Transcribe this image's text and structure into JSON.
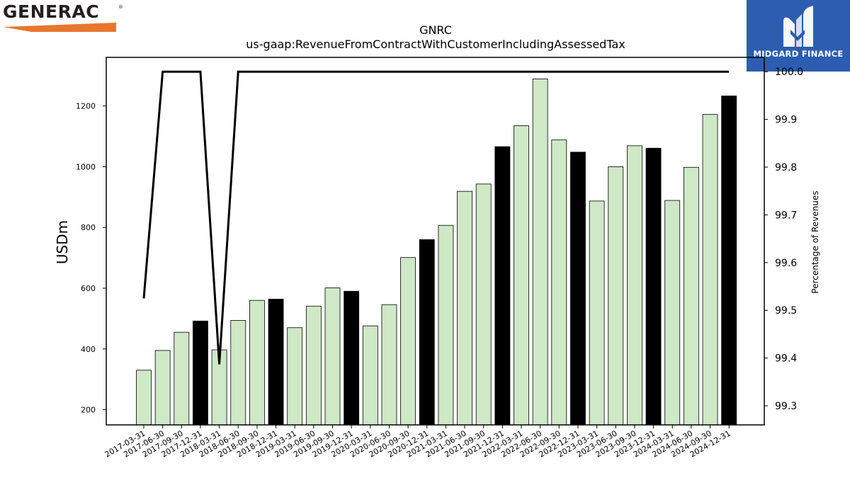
{
  "logos": {
    "left_text": "GENERAC",
    "left_mark": "®",
    "right_text": "MIDGARD FINANCE",
    "right_icon": "midgard-m-icon"
  },
  "colors": {
    "generac_orange": "#e8772e",
    "midgard_blue": "#2c5db0",
    "bar_light": "#cfe8c6",
    "bar_dark": "#000000"
  },
  "chart_data": {
    "type": "bar",
    "title": "GNRC",
    "subtitle": "us-gaap:RevenueFromContractWithCustomerIncludingAssessedTax",
    "ylabel": "USDm",
    "y2label": "Percentage of Revenues",
    "categories": [
      "2017-03-31",
      "2017-06-30",
      "2017-09-30",
      "2017-12-31",
      "2018-03-31",
      "2018-06-30",
      "2018-09-30",
      "2018-12-31",
      "2019-03-31",
      "2019-06-30",
      "2019-09-30",
      "2019-12-31",
      "2020-03-31",
      "2020-06-30",
      "2020-09-30",
      "2020-12-31",
      "2021-03-31",
      "2021-06-30",
      "2021-09-30",
      "2021-12-31",
      "2022-03-31",
      "2022-06-30",
      "2022-09-30",
      "2022-12-31",
      "2023-03-31",
      "2023-06-30",
      "2023-09-30",
      "2023-12-31",
      "2024-03-31",
      "2024-06-30",
      "2024-09-30",
      "2024-12-31"
    ],
    "series": [
      {
        "type": "bar",
        "values": [
          330,
          395,
          455,
          492,
          397,
          494,
          560,
          564,
          470,
          541,
          601,
          590,
          476,
          546,
          701,
          760,
          807,
          919,
          943,
          1066,
          1135,
          1289,
          1088,
          1048,
          887,
          1000,
          1069,
          1061,
          889,
          998,
          1172,
          1233
        ],
        "highlight": [
          false,
          false,
          false,
          true,
          false,
          false,
          false,
          true,
          false,
          false,
          false,
          true,
          false,
          false,
          false,
          true,
          false,
          false,
          false,
          true,
          false,
          false,
          false,
          true,
          false,
          false,
          false,
          true,
          false,
          false,
          false,
          true
        ]
      },
      {
        "type": "line",
        "axis": "right",
        "values": [
          99.525,
          100.0,
          100.0,
          100.0,
          99.387,
          100.0,
          100.0,
          100.0,
          100.0,
          100.0,
          100.0,
          100.0,
          100.0,
          100.0,
          100.0,
          100.0,
          100.0,
          100.0,
          100.0,
          100.0,
          100.0,
          100.0,
          100.0,
          100.0,
          100.0,
          100.0,
          100.0,
          100.0,
          100.0,
          100.0,
          100.0,
          100.0
        ]
      }
    ],
    "ylim": [
      150,
      1360
    ],
    "yticks": [
      200,
      400,
      600,
      800,
      1000,
      1200
    ],
    "y2lim": [
      99.26,
      100.03
    ],
    "y2ticks": [
      "99.3",
      "99.4",
      "99.5",
      "99.6",
      "99.7",
      "99.8",
      "99.9",
      "100.0"
    ],
    "grid": false,
    "legend": "none"
  }
}
